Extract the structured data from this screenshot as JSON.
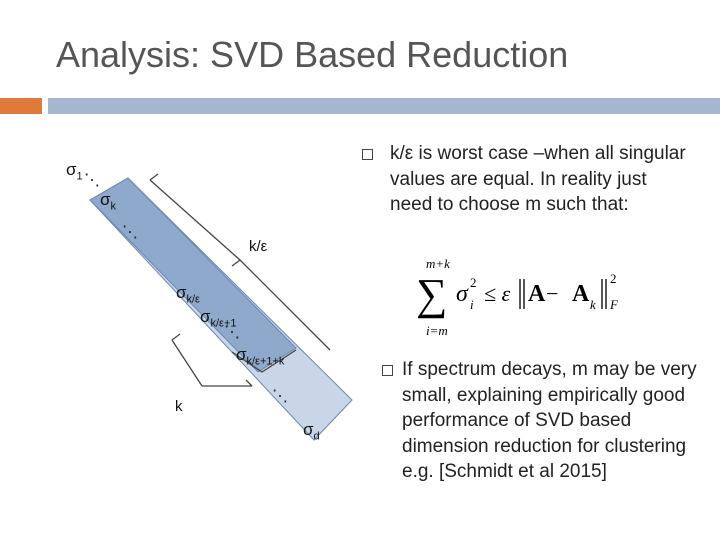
{
  "slide": {
    "title": "Analysis: SVD Based Reduction"
  },
  "bullets": [
    {
      "text": "k/ε is worst case –when all singular values are equal. In reality just need to choose m such that:"
    },
    {
      "text": "If spectrum decays, m may be very small, explaining empirically good performance of SVD based dimension reduction for clustering e.g. [Schmidt et al 2015]"
    }
  ],
  "formula": {
    "upper": "m+k",
    "lower": "i=m",
    "sigma": "σ",
    "sub_i": "i",
    "sup_2": "2",
    "le": "≤ ε",
    "A": "A",
    "minus": " − ",
    "Ak": "A",
    "sub_k": "k",
    "sub_F": "F",
    "sup_F2": "2"
  },
  "diagram": {
    "sigma": "σ",
    "sub_1": "1",
    "sub_k": "k",
    "sub_keps": "k/ε",
    "sub_keps1": "k/ε+1",
    "sub_keps1k": "k/ε+1+k",
    "sub_d": "d",
    "label_keps": "k/ε",
    "label_k": "k",
    "dots": "⋱",
    "dots2": "…",
    "colors": {
      "band_outer": "#c9d6e8",
      "band_inner": "#8fa9cc",
      "edge": "#6c87ad"
    }
  }
}
